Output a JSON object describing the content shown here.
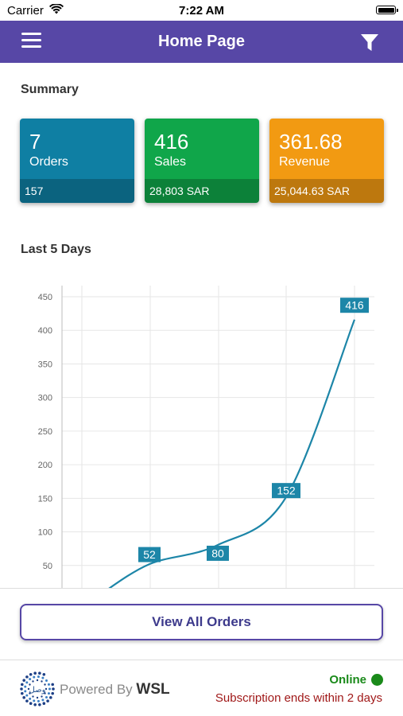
{
  "status_bar": {
    "carrier": "Carrier",
    "time": "7:22 AM"
  },
  "navbar": {
    "title": "Home Page",
    "menu_icon": "hamburger-icon",
    "filter_icon": "filter-icon",
    "color": "#5747a6"
  },
  "summary": {
    "title": "Summary",
    "cards": [
      {
        "value": "7",
        "label": "Orders",
        "footer": "157",
        "color": "#0f7fa3"
      },
      {
        "value": "416",
        "label": "Sales",
        "footer": "28,803 SAR",
        "color": "#10a64a"
      },
      {
        "value": "361.68",
        "label": "Revenue",
        "footer": "25,044.63 SAR",
        "color": "#f29a12"
      }
    ]
  },
  "chart_section": {
    "title": "Last 5 Days"
  },
  "chart_data": {
    "type": "line",
    "title": "",
    "xlabel": "",
    "ylabel": "",
    "ylim": [
      0,
      450
    ],
    "yticks": [
      50,
      100,
      150,
      200,
      250,
      300,
      350,
      400,
      450
    ],
    "grid": true,
    "smooth": true,
    "line_color": "#1d86a8",
    "points": [
      {
        "x": 1,
        "y": 5,
        "label": ""
      },
      {
        "x": 2,
        "y": 52,
        "label": "52"
      },
      {
        "x": 3,
        "y": 80,
        "label": "80"
      },
      {
        "x": 4,
        "y": 152,
        "label": "152"
      },
      {
        "x": 5,
        "y": 416,
        "label": "416"
      }
    ]
  },
  "actions": {
    "view_all_orders": "View All Orders"
  },
  "footer": {
    "powered_prefix": "Powered By",
    "powered_brand": "WSL",
    "online": "Online",
    "subscription": "Subscription ends within 2 days"
  }
}
